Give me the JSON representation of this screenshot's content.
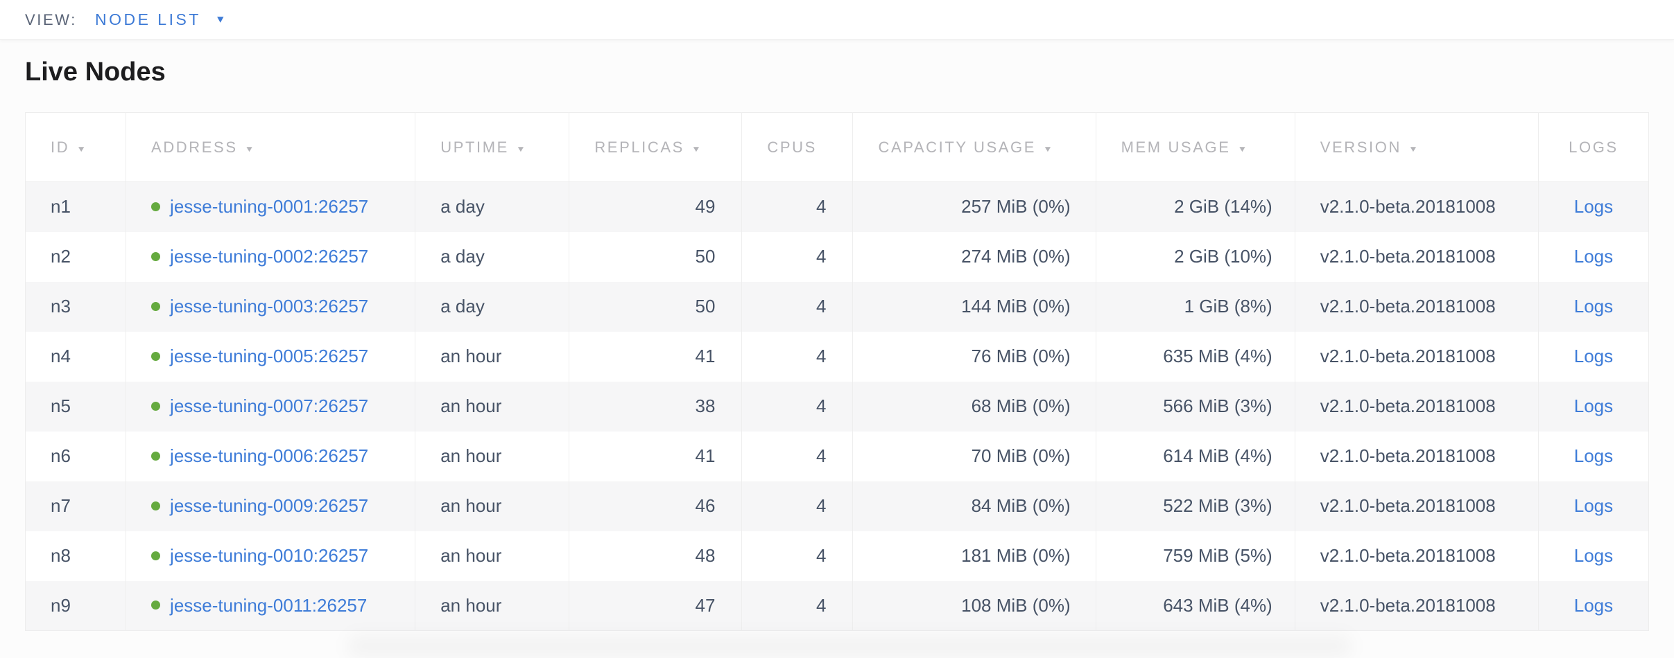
{
  "view_bar": {
    "label": "VIEW:",
    "selected": "NODE LIST"
  },
  "icons": {
    "dropdown_caret": "▼",
    "sort_indicator": "▼"
  },
  "page": {
    "title": "Live Nodes"
  },
  "table": {
    "columns": [
      {
        "key": "id",
        "label": "ID",
        "sortable": true
      },
      {
        "key": "address",
        "label": "ADDRESS",
        "sortable": true
      },
      {
        "key": "uptime",
        "label": "UPTIME",
        "sortable": true
      },
      {
        "key": "replicas",
        "label": "REPLICAS",
        "sortable": true
      },
      {
        "key": "cpus",
        "label": "CPUS",
        "sortable": false
      },
      {
        "key": "capacity",
        "label": "CAPACITY USAGE",
        "sortable": true
      },
      {
        "key": "mem",
        "label": "MEM USAGE",
        "sortable": true
      },
      {
        "key": "version",
        "label": "VERSION",
        "sortable": true
      },
      {
        "key": "logs",
        "label": "LOGS",
        "sortable": false
      }
    ],
    "rows": [
      {
        "id": "n1",
        "address": "jesse-tuning-0001:26257",
        "uptime": "a day",
        "replicas": "49",
        "cpus": "4",
        "capacity": "257 MiB (0%)",
        "mem": "2 GiB (14%)",
        "version": "v2.1.0-beta.20181008",
        "logs": "Logs"
      },
      {
        "id": "n2",
        "address": "jesse-tuning-0002:26257",
        "uptime": "a day",
        "replicas": "50",
        "cpus": "4",
        "capacity": "274 MiB (0%)",
        "mem": "2 GiB (10%)",
        "version": "v2.1.0-beta.20181008",
        "logs": "Logs"
      },
      {
        "id": "n3",
        "address": "jesse-tuning-0003:26257",
        "uptime": "a day",
        "replicas": "50",
        "cpus": "4",
        "capacity": "144 MiB (0%)",
        "mem": "1 GiB (8%)",
        "version": "v2.1.0-beta.20181008",
        "logs": "Logs"
      },
      {
        "id": "n4",
        "address": "jesse-tuning-0005:26257",
        "uptime": "an hour",
        "replicas": "41",
        "cpus": "4",
        "capacity": "76 MiB (0%)",
        "mem": "635 MiB (4%)",
        "version": "v2.1.0-beta.20181008",
        "logs": "Logs"
      },
      {
        "id": "n5",
        "address": "jesse-tuning-0007:26257",
        "uptime": "an hour",
        "replicas": "38",
        "cpus": "4",
        "capacity": "68 MiB (0%)",
        "mem": "566 MiB (3%)",
        "version": "v2.1.0-beta.20181008",
        "logs": "Logs"
      },
      {
        "id": "n6",
        "address": "jesse-tuning-0006:26257",
        "uptime": "an hour",
        "replicas": "41",
        "cpus": "4",
        "capacity": "70 MiB (0%)",
        "mem": "614 MiB (4%)",
        "version": "v2.1.0-beta.20181008",
        "logs": "Logs"
      },
      {
        "id": "n7",
        "address": "jesse-tuning-0009:26257",
        "uptime": "an hour",
        "replicas": "46",
        "cpus": "4",
        "capacity": "84 MiB (0%)",
        "mem": "522 MiB (3%)",
        "version": "v2.1.0-beta.20181008",
        "logs": "Logs"
      },
      {
        "id": "n8",
        "address": "jesse-tuning-0010:26257",
        "uptime": "an hour",
        "replicas": "48",
        "cpus": "4",
        "capacity": "181 MiB (0%)",
        "mem": "759 MiB (5%)",
        "version": "v2.1.0-beta.20181008",
        "logs": "Logs"
      },
      {
        "id": "n9",
        "address": "jesse-tuning-0011:26257",
        "uptime": "an hour",
        "replicas": "47",
        "cpus": "4",
        "capacity": "108 MiB (0%)",
        "mem": "643 MiB (4%)",
        "version": "v2.1.0-beta.20181008",
        "logs": "Logs"
      }
    ]
  },
  "colors": {
    "accent_blue": "#3e7cd8",
    "status_green": "#65aa3f",
    "header_gray": "#b4b4b8",
    "body_text": "#475366"
  }
}
